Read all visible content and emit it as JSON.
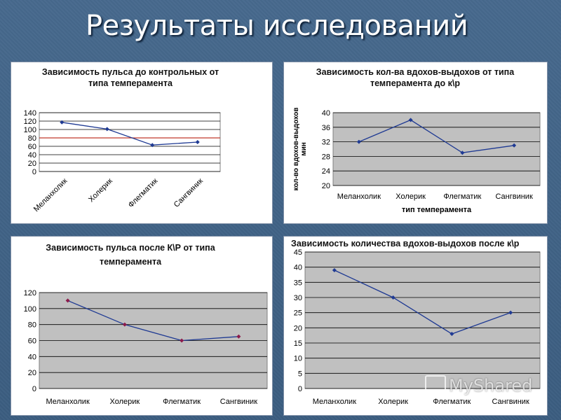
{
  "slide": {
    "title": "Результаты исследований",
    "watermark": "MyShared"
  },
  "chart_data": [
    {
      "type": "line",
      "title": "Зависимость пульса до контрольных от типа темперамента",
      "xlabel": "",
      "ylabel": "",
      "categories": [
        "Меланхолик",
        "Холерик",
        "Флегматик",
        "Сангвиник"
      ],
      "series": [
        {
          "values": [
            117,
            101,
            63,
            70
          ],
          "color": "#1f3a93"
        }
      ],
      "reference_line": {
        "value": 80,
        "color": "#c0392b"
      },
      "ylim": [
        0,
        140
      ],
      "yticks": [
        0,
        20,
        40,
        60,
        80,
        100,
        120,
        140
      ],
      "x_tick_rotation": -45,
      "grid": true,
      "plot_background": "#ffffff",
      "legend": "none"
    },
    {
      "type": "line",
      "title": "Зависимость кол-ва вдохов-выдохов от типа темперамента до к\\р",
      "xlabel": "тип темперамента",
      "ylabel": "кол-во вдохов-выдохов мин",
      "categories": [
        "Меланхолик",
        "Холерик",
        "Флегматик",
        "Сангвиник"
      ],
      "series": [
        {
          "values": [
            32,
            38,
            29,
            31
          ],
          "color": "#1f3a93"
        }
      ],
      "ylim": [
        20,
        40
      ],
      "yticks": [
        20,
        24,
        28,
        32,
        36,
        40
      ],
      "grid": true,
      "plot_background": "#c0c0c0",
      "legend": "none"
    },
    {
      "type": "line",
      "title": "Зависимость пульса после К\\Р от типа темперамента",
      "xlabel": "",
      "ylabel": "",
      "categories": [
        "Меланхолик",
        "Холерик",
        "Флегматик",
        "Сангвиник"
      ],
      "series": [
        {
          "values": [
            110,
            80,
            60,
            65
          ],
          "color": "#1f3a93",
          "marker_color": "#8b1a4a"
        }
      ],
      "ylim": [
        0,
        120
      ],
      "yticks": [
        0,
        20,
        40,
        60,
        80,
        100,
        120
      ],
      "grid": true,
      "plot_background": "#c0c0c0",
      "legend": "none"
    },
    {
      "type": "line",
      "title": "Зависимость количества вдохов-выдохов после к\\р",
      "xlabel": "",
      "ylabel": "",
      "categories": [
        "Меланхолик",
        "Холерик",
        "Флегматик",
        "Сангвиник"
      ],
      "series": [
        {
          "values": [
            39,
            30,
            18,
            25
          ],
          "color": "#1f3a93"
        }
      ],
      "ylim": [
        0,
        45
      ],
      "yticks": [
        0,
        5,
        10,
        15,
        20,
        25,
        30,
        35,
        40,
        45
      ],
      "grid": true,
      "plot_background": "#c0c0c0",
      "legend": "none"
    }
  ]
}
